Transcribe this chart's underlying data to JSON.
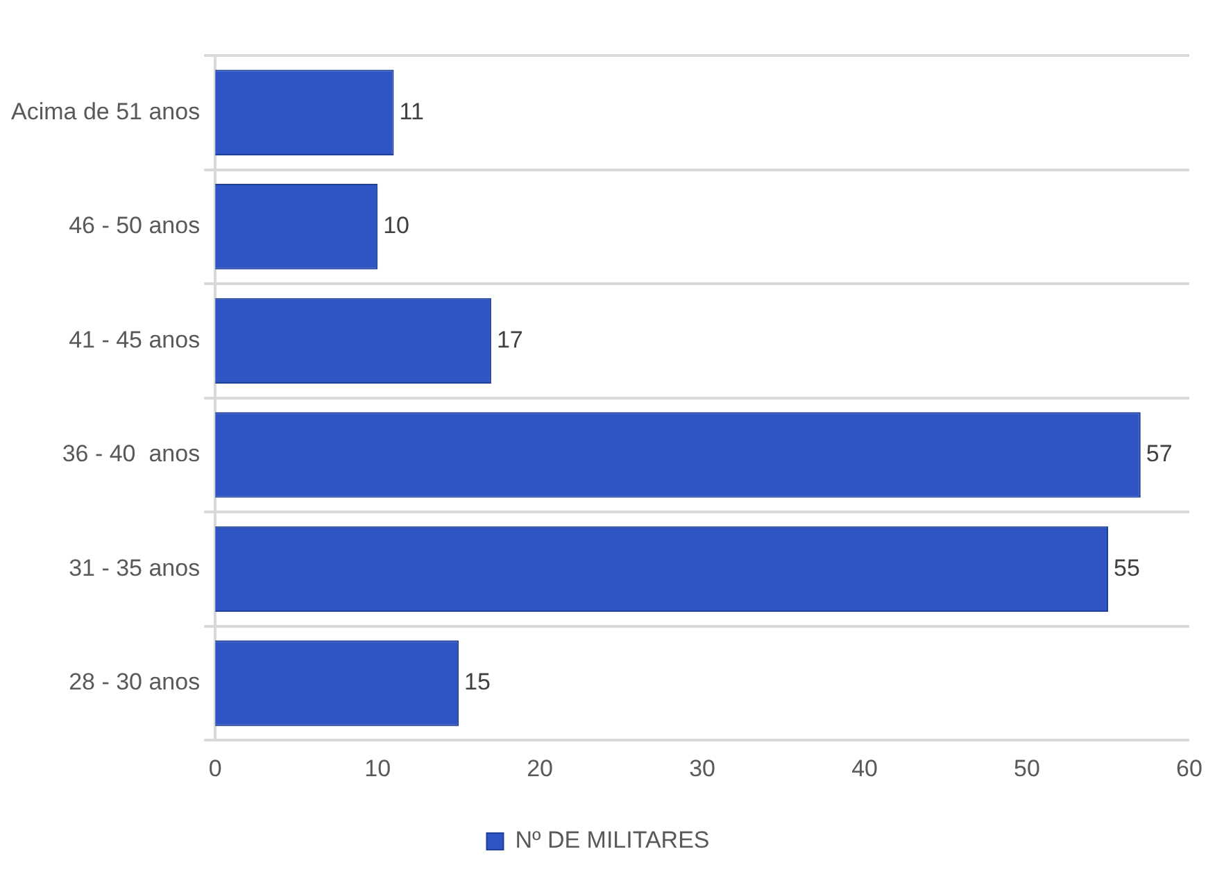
{
  "chart_data": {
    "type": "bar",
    "orientation": "horizontal",
    "categories": [
      "Acima de 51 anos",
      "46 - 50 anos",
      "41 - 45 anos",
      "36 - 40  anos",
      "31 - 35 anos",
      "28 - 30 anos"
    ],
    "series": [
      {
        "name": "Nº DE MILITARES",
        "color": "#2f55c4",
        "values": [
          11,
          10,
          17,
          57,
          55,
          15
        ]
      }
    ],
    "xlim": [
      0,
      60
    ],
    "xticks": [
      0,
      10,
      20,
      30,
      40,
      50,
      60
    ],
    "grid": "y",
    "legend": "bottom",
    "data_labels": true
  }
}
